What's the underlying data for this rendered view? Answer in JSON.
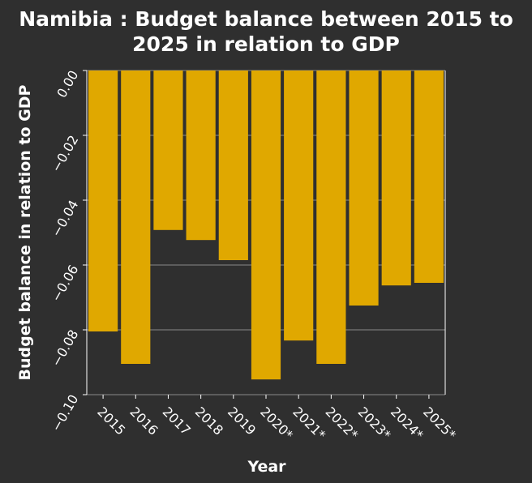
{
  "chart_data": {
    "type": "bar",
    "title_lines": [
      "Namibia : Budget balance between 2015 to",
      "2025 in relation to GDP"
    ],
    "xlabel": "Year",
    "ylabel": "Budget balance in relation to GDP",
    "categories": [
      "2015",
      "2016",
      "2017",
      "2018",
      "2019",
      "2020*",
      "2021*",
      "2022*",
      "2023*",
      "2024*",
      "2025*"
    ],
    "values": [
      -0.0805,
      -0.0905,
      -0.0492,
      -0.0523,
      -0.0585,
      -0.0953,
      -0.0833,
      -0.0905,
      -0.0725,
      -0.0663,
      -0.0655
    ],
    "ylim": [
      -0.1,
      0.0
    ],
    "yticks": [
      0.0,
      -0.02,
      -0.04,
      -0.06,
      -0.08,
      -0.1
    ],
    "ytick_labels": [
      "0.00",
      "−0.02",
      "−0.04",
      "−0.06",
      "−0.08",
      "−0.10"
    ],
    "grid": true,
    "colors": {
      "background": "#2f2f2f",
      "bar": "#e0a800"
    }
  }
}
